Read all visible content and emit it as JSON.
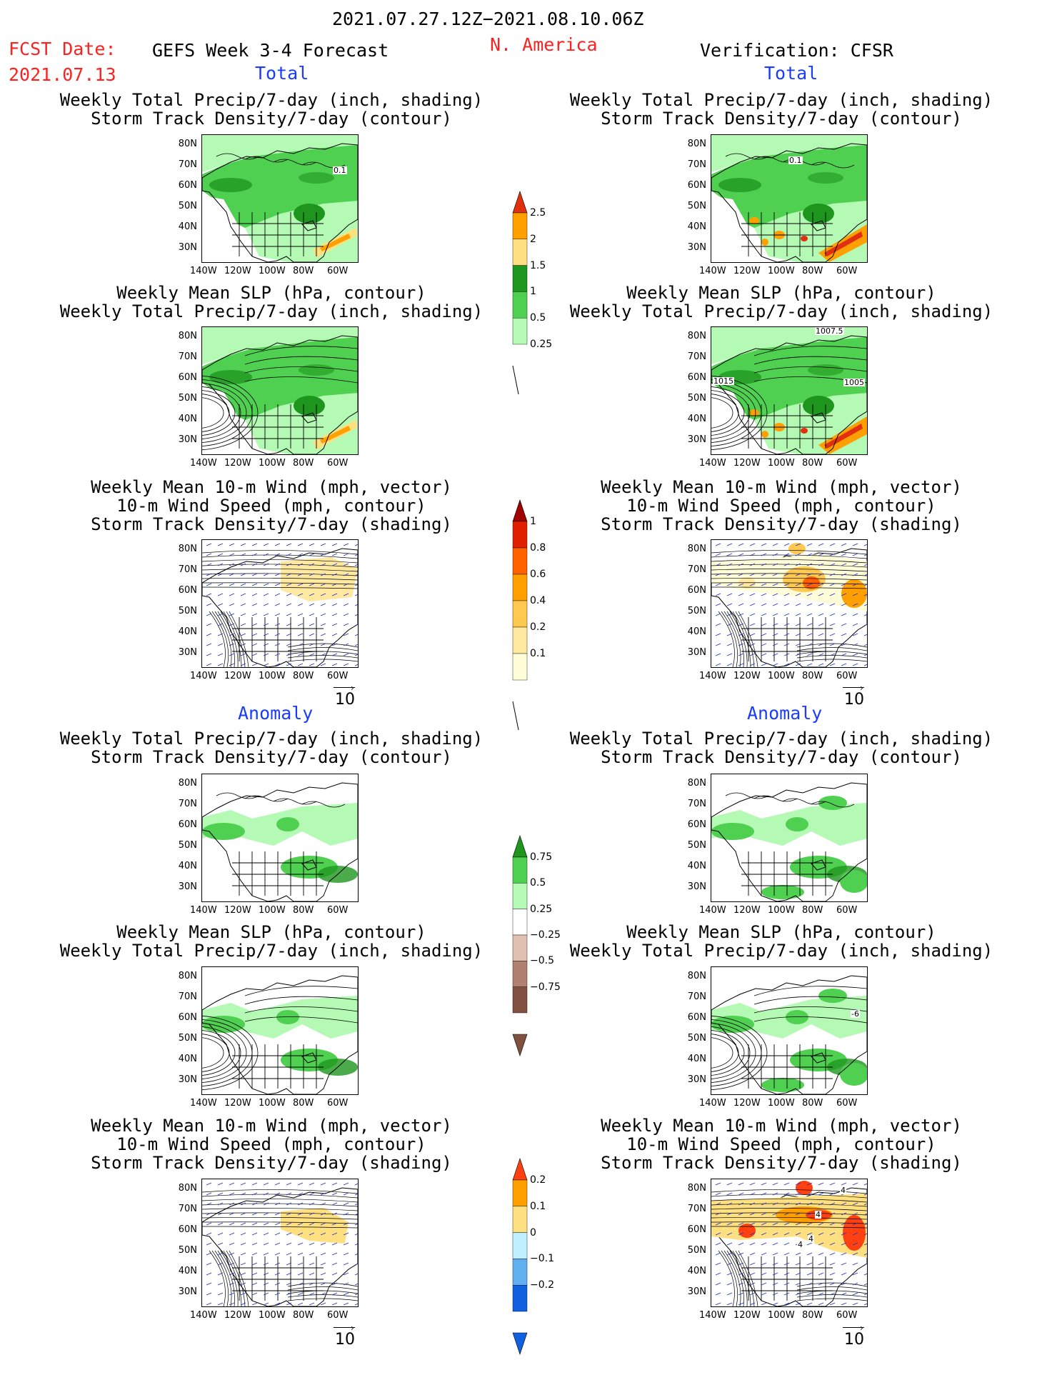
{
  "header": {
    "period": "2021.07.27.12Z−2021.08.10.06Z",
    "fcst_label": "FCST Date:",
    "fcst_date": "2021.07.13",
    "model": "GEFS Week 3-4 Forecast",
    "region": "N. America",
    "verification": "Verification: CFSR"
  },
  "sections": {
    "total": "Total",
    "anomaly": "Anomaly"
  },
  "panel_titles": {
    "precip_storm": [
      "Weekly Total Precip/7-day (inch, shading)",
      "Storm Track Density/7-day (contour)"
    ],
    "slp_precip": [
      "Weekly Mean SLP (hPa, contour)",
      "Weekly Total Precip/7-day (inch, shading)"
    ],
    "wind_storm": [
      "Weekly Mean 10-m Wind (mph, vector)",
      "10-m Wind Speed (mph, contour)",
      "Storm Track Density/7-day (shading)"
    ]
  },
  "axes": {
    "lat_labels": [
      "80N",
      "70N",
      "60N",
      "50N",
      "40N",
      "30N"
    ],
    "lon_labels": [
      "140W",
      "120W",
      "100W",
      "80W",
      "60W"
    ]
  },
  "vector_ref": "10",
  "map_annotations": {
    "total_fcst_precip": "0.1",
    "total_cfsr_precip": "0.1",
    "slp_labels": [
      "1007.5",
      "1015",
      "1005"
    ],
    "anom_cfsr_slp": "-6",
    "cfsr_wind_labels": [
      "4",
      "4",
      "4",
      "4"
    ]
  },
  "colorbars": {
    "precip_total": {
      "labels": [
        "2.5",
        "2",
        "1.5",
        "1",
        "0.5",
        "0.25"
      ],
      "colors": [
        "#e03010",
        "#ffa000",
        "#ffe080",
        "#1e961e",
        "#50d050",
        "#b4fab4"
      ]
    },
    "storm_total": {
      "labels": [
        "1",
        "0.8",
        "0.6",
        "0.4",
        "0.2",
        "0.1"
      ],
      "colors": [
        "#a00000",
        "#e02000",
        "#ff6000",
        "#ffa000",
        "#ffc850",
        "#ffe8a0",
        "#fffcd8"
      ]
    },
    "precip_anom": {
      "labels": [
        "0.75",
        "0.5",
        "0.25",
        "−0.25",
        "−0.5",
        "−0.75"
      ],
      "colors": [
        "#1e961e",
        "#50d050",
        "#b4fab4",
        "#ffffff",
        "#e0c0b0",
        "#b08070",
        "#805040"
      ]
    },
    "storm_anom": {
      "labels": [
        "0.2",
        "0.1",
        "0",
        "−0.1",
        "−0.2"
      ],
      "colors": [
        "#ff4010",
        "#ffa000",
        "#ffe080",
        "#c0f0ff",
        "#60b0f0",
        "#1060e0"
      ]
    }
  }
}
